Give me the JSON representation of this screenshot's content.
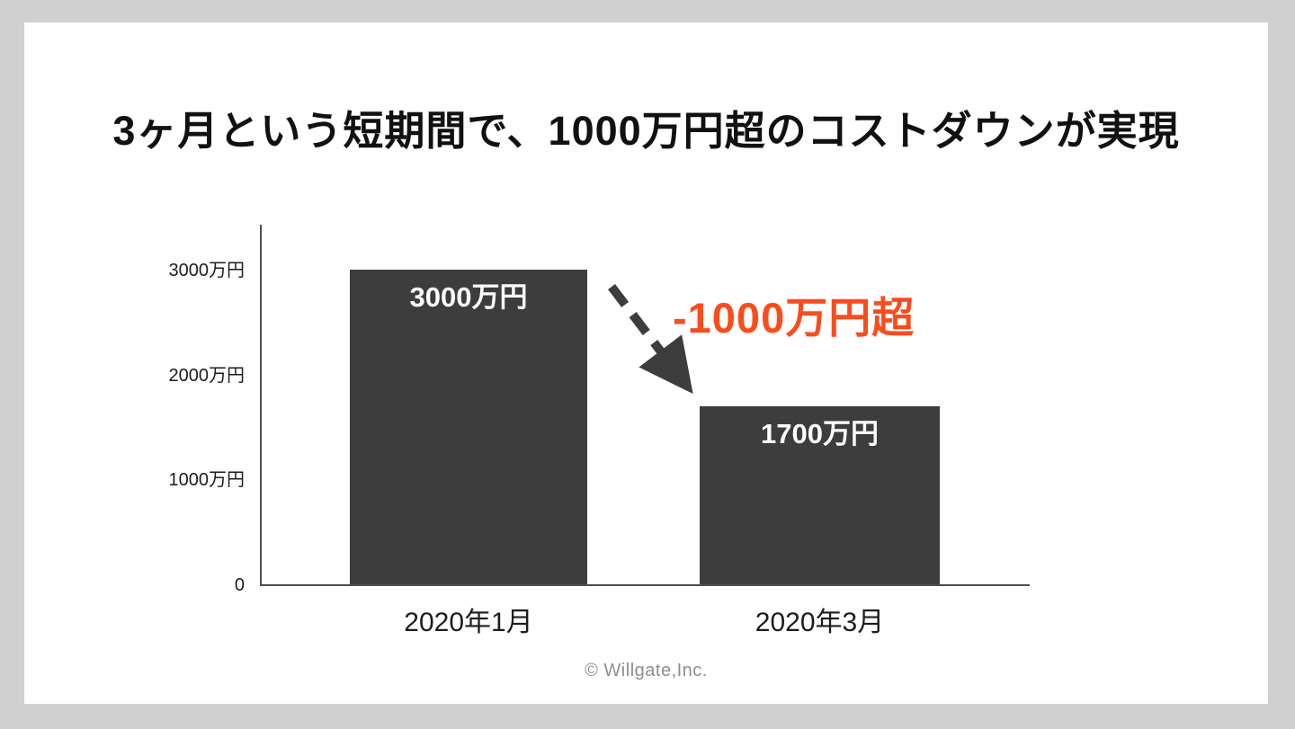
{
  "slide": {
    "title": "3ヶ月という短期間で、1000万円超のコストダウンが実現",
    "footer": "© Willgate,Inc.",
    "background_color": "#d1d0d0",
    "card_color": "#ffffff"
  },
  "annotation": {
    "label": "-1000万円超",
    "color": "#f94d1c"
  },
  "chart_data": {
    "type": "bar",
    "categories": [
      "2020年1月",
      "2020年3月"
    ],
    "values": [
      3000,
      1700
    ],
    "unit": "万円",
    "bar_labels": [
      "3000万円",
      "1700万円"
    ],
    "y_ticks": [
      "3000万円",
      "2000万円",
      "1000万円",
      "0"
    ],
    "y_tick_values": [
      3000,
      2000,
      1000,
      0
    ],
    "ylim": [
      0,
      3440
    ],
    "xlabel": "",
    "ylabel": "",
    "grid": false,
    "legend": false,
    "bar_color": "#3d3d3d",
    "bar_label_color": "#ffffff",
    "axis_color": "#4d4d4d",
    "arrow_direction": "down-right"
  }
}
